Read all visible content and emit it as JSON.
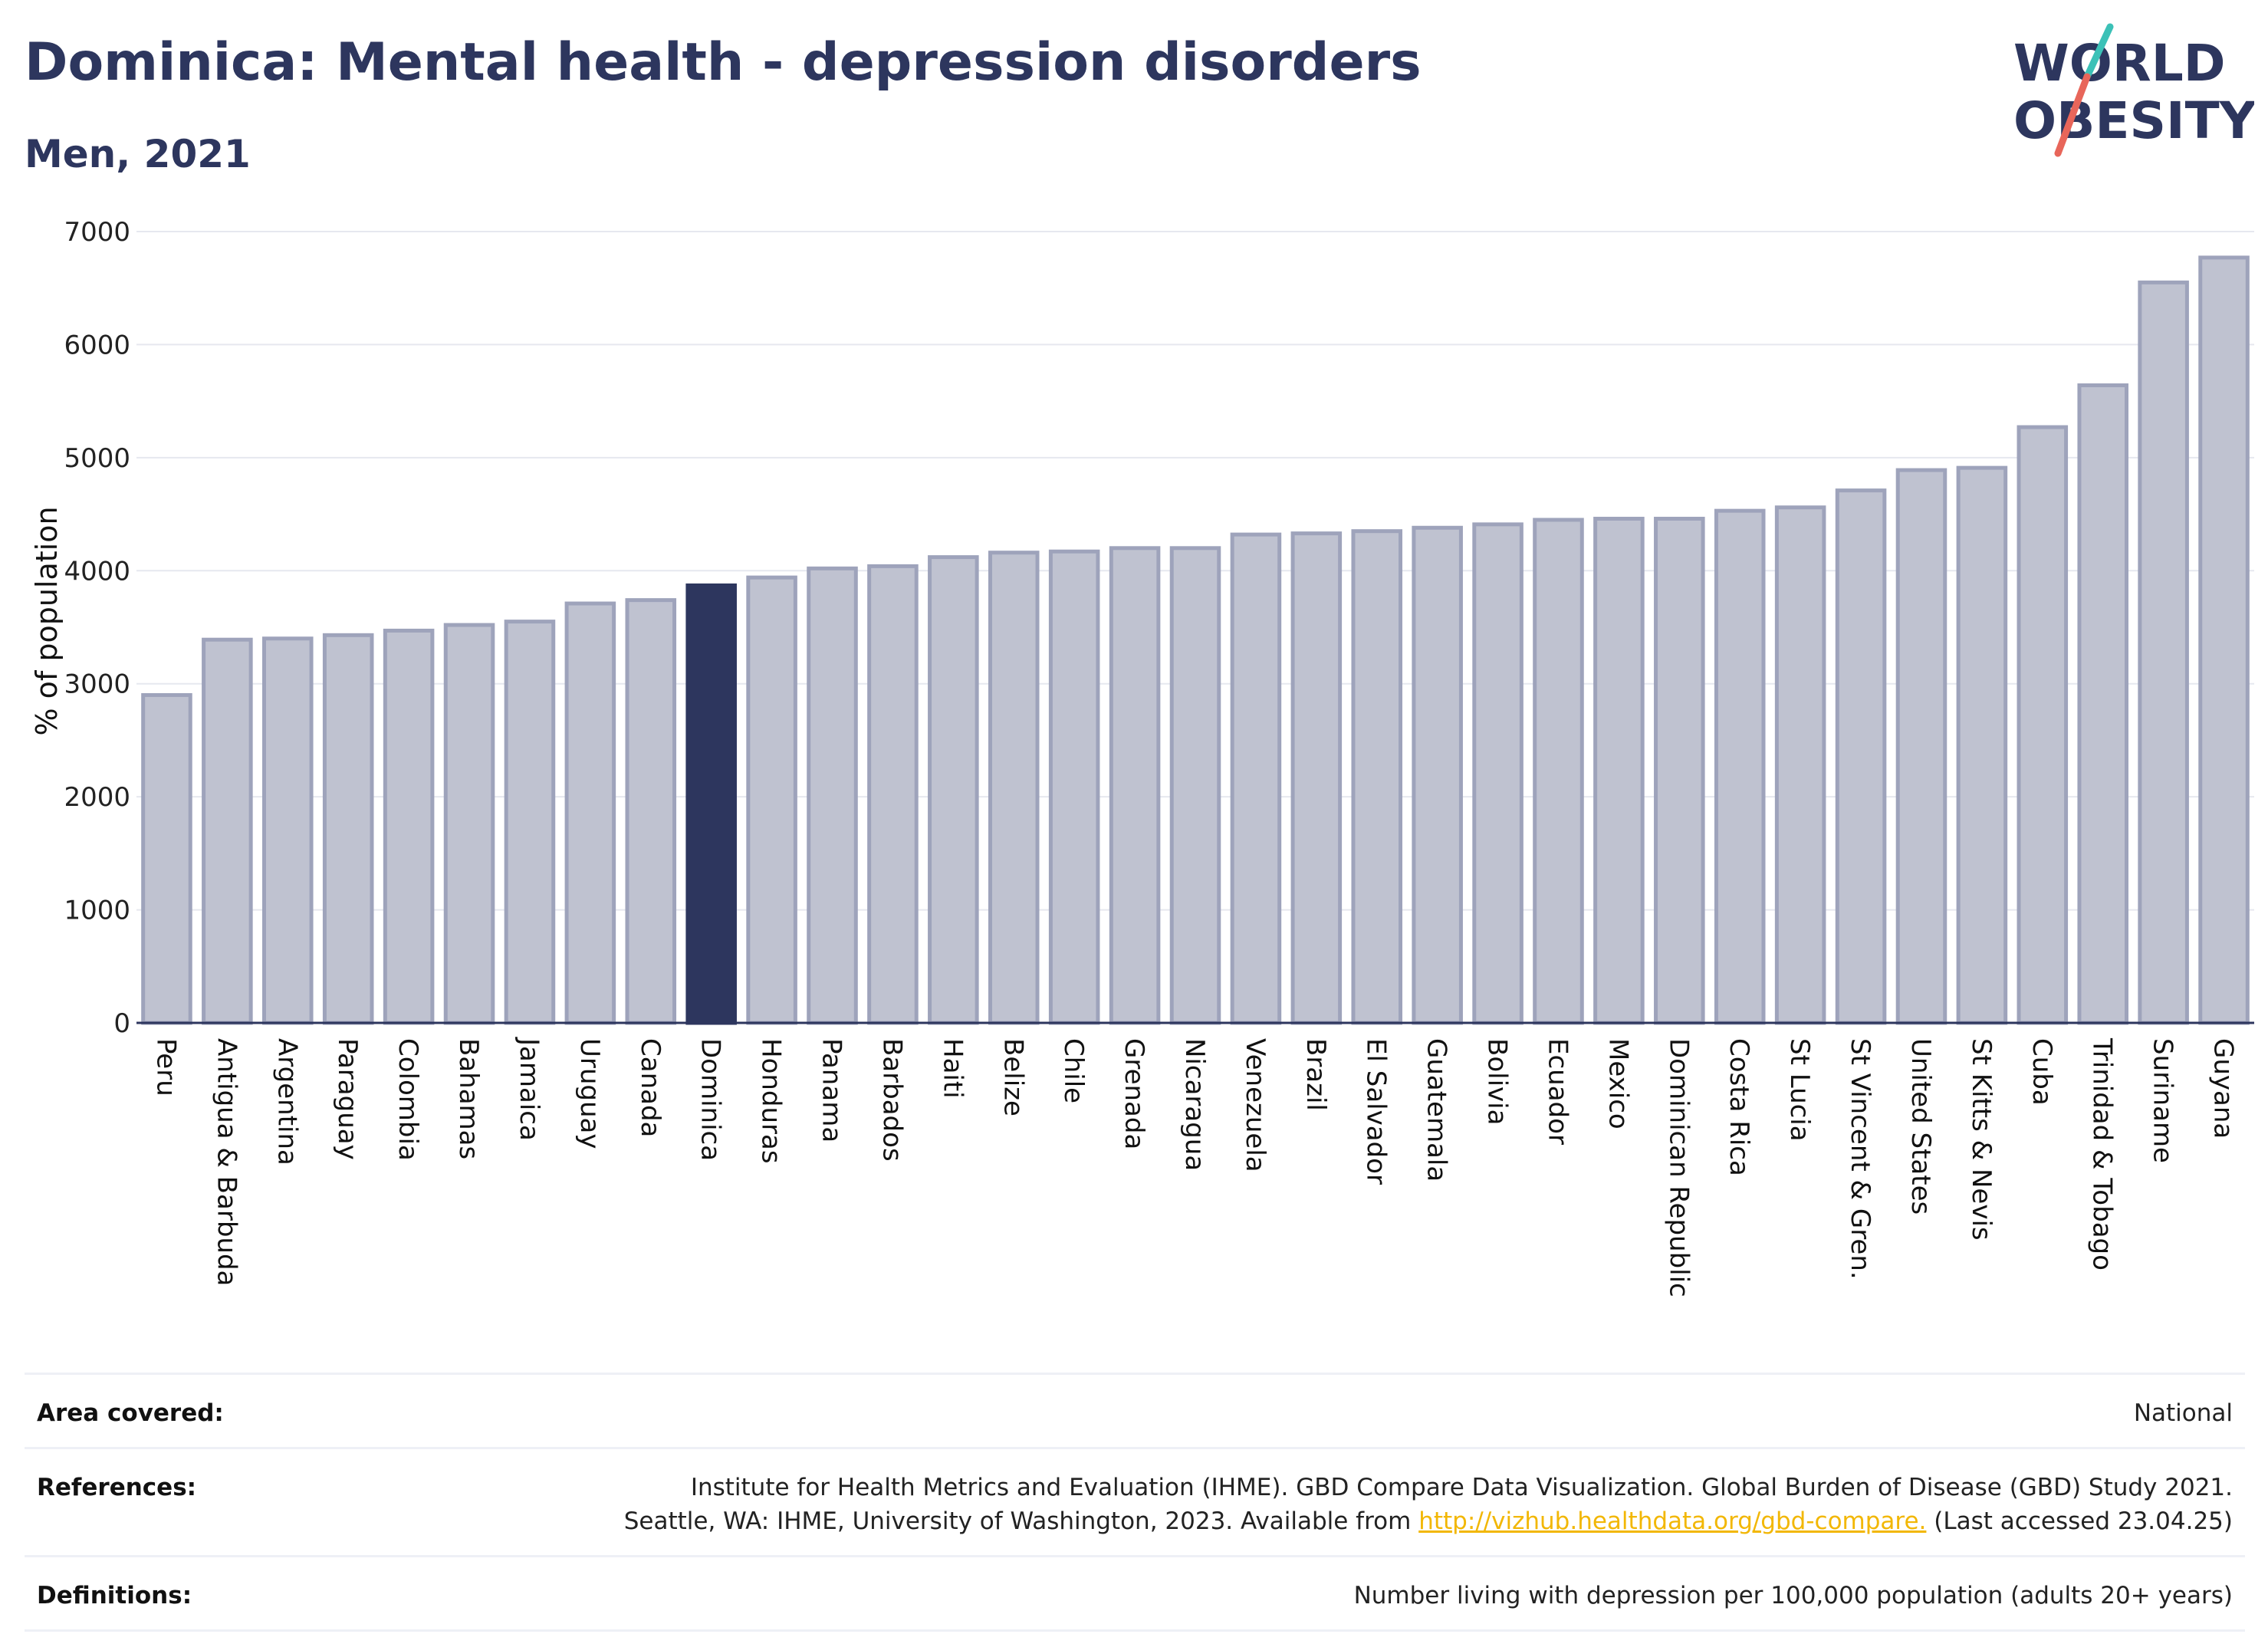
{
  "header": {
    "title": "Dominica: Mental health - depression disorders",
    "subtitle": "Men, 2021"
  },
  "logo": {
    "line1": "WORLD",
    "line2": "OBESITY",
    "slash_color_top": "#3cc1b7",
    "slash_color_bottom": "#e8665a"
  },
  "colors": {
    "bar": "#bfc2d0",
    "bar_border": "#9ea3bb",
    "highlight": "#2d365e",
    "text": "#2d365e"
  },
  "chart_data": {
    "type": "bar",
    "title": "Dominica: Mental health - depression disorders",
    "subtitle": "Men, 2021",
    "ylabel": "% of population",
    "xlabel": "",
    "ylim": [
      0,
      7000
    ],
    "yticks": [
      0,
      1000,
      2000,
      3000,
      4000,
      5000,
      6000,
      7000
    ],
    "grid": true,
    "highlight": "Dominica",
    "categories": [
      "Peru",
      "Antigua & Barbuda",
      "Argentina",
      "Paraguay",
      "Colombia",
      "Bahamas",
      "Jamaica",
      "Uruguay",
      "Canada",
      "Dominica",
      "Honduras",
      "Panama",
      "Barbados",
      "Haiti",
      "Belize",
      "Chile",
      "Grenada",
      "Nicaragua",
      "Venezuela",
      "Brazil",
      "El Salvador",
      "Guatemala",
      "Bolivia",
      "Ecuador",
      "Mexico",
      "Dominican Republic",
      "Costa Rica",
      "St Lucia",
      "St Vincent & Gren.",
      "United States",
      "St Kitts & Nevis",
      "Cuba",
      "Trinidad & Tobago",
      "Suriname",
      "Guyana"
    ],
    "values": [
      2900,
      3390,
      3400,
      3430,
      3470,
      3520,
      3550,
      3710,
      3740,
      3870,
      3940,
      4020,
      4040,
      4120,
      4160,
      4170,
      4200,
      4200,
      4320,
      4330,
      4350,
      4380,
      4410,
      4450,
      4460,
      4460,
      4530,
      4560,
      4710,
      4890,
      4910,
      5270,
      5640,
      6550,
      6770
    ]
  },
  "footer": {
    "area_label": "Area covered:",
    "area_value": "National",
    "references_label": "References:",
    "references_line1": "Institute for Health Metrics and Evaluation (IHME). GBD Compare Data Visualization. Global Burden of Disease (GBD) Study 2021.",
    "references_line2_prefix": "Seattle, WA: IHME, University of Washington, 2023. Available from ",
    "references_link": "http://vizhub.healthdata.org/gbd-compare.",
    "references_line2_suffix": " (Last accessed 23.04.25)",
    "definitions_label": "Definitions:",
    "definitions_value": "Number living with depression per 100,000 population (adults 20+ years)"
  }
}
